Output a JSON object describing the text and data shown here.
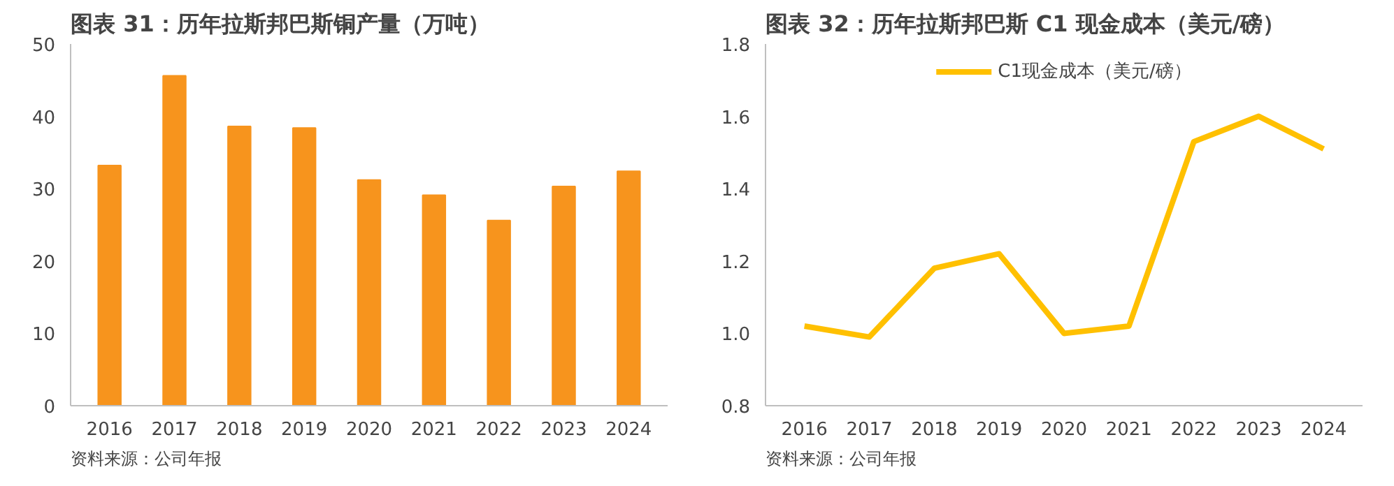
{
  "chart_data": [
    {
      "type": "bar",
      "title": "图表 31：历年拉斯邦巴斯铜产量（万吨）",
      "categories": [
        "2016",
        "2017",
        "2018",
        "2019",
        "2020",
        "2021",
        "2022",
        "2023",
        "2024"
      ],
      "series": [
        {
          "color": "#f7941d",
          "values": [
            33.2,
            45.6,
            38.6,
            38.4,
            31.2,
            29.1,
            25.6,
            30.3,
            32.4
          ]
        }
      ],
      "ylim": [
        0,
        50
      ],
      "yticks": [
        0,
        10,
        20,
        30,
        40,
        50
      ],
      "grid": false,
      "legend": false,
      "annotations": [
        "资料来源：公司年报"
      ]
    },
    {
      "type": "line",
      "title": "图表 32：历年拉斯邦巴斯 C1 现金成本（美元/磅）",
      "categories": [
        "2016",
        "2017",
        "2018",
        "2019",
        "2020",
        "2021",
        "2022",
        "2023",
        "2024"
      ],
      "series": [
        {
          "name": "C1现金成本（美元/磅）",
          "color": "#ffc000",
          "values": [
            1.02,
            0.99,
            1.18,
            1.22,
            1.0,
            1.02,
            1.53,
            1.6,
            1.51
          ]
        }
      ],
      "ylim": [
        0.8,
        1.8
      ],
      "yticks": [
        {
          "value": 0.8,
          "label": "0.8"
        },
        {
          "value": 1.0,
          "label": "1.0"
        },
        {
          "value": 1.2,
          "label": "1.2"
        },
        {
          "value": 1.4,
          "label": "1.4"
        },
        {
          "value": 1.6,
          "label": "1.6"
        },
        {
          "value": 1.8,
          "label": "1.8"
        }
      ],
      "grid": false,
      "legend": "top",
      "marker": "none",
      "line_style": "solid",
      "annotations": [
        "资料来源：公司年报"
      ]
    }
  ]
}
